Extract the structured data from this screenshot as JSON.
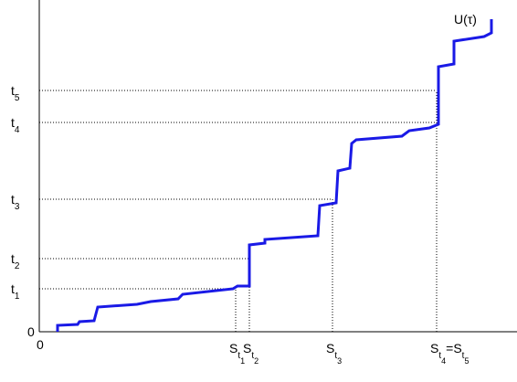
{
  "chart_data": {
    "type": "line",
    "annotation": "U(τ)",
    "xlim": [
      0,
      523
    ],
    "ylim": [
      0,
      363
    ],
    "xticks": [
      0,
      {
        "value": 215,
        "label": [
          {
            "text": "S",
            "level": 0
          },
          {
            "text": "t",
            "level": 1
          },
          {
            "text": "1",
            "level": 2
          }
        ]
      },
      {
        "value": 230,
        "label": [
          {
            "text": "S",
            "level": 0
          },
          {
            "text": "t",
            "level": 1
          },
          {
            "text": "2",
            "level": 2
          }
        ]
      },
      {
        "value": 321,
        "label": [
          {
            "text": "S",
            "level": 0
          },
          {
            "text": "t",
            "level": 1
          },
          {
            "text": "3",
            "level": 2
          }
        ]
      },
      {
        "value": 435,
        "label": [
          {
            "text": "S",
            "level": 0
          },
          {
            "text": "t",
            "level": 1
          },
          {
            "text": "4",
            "level": 2
          },
          {
            "text": "=S",
            "level": 0
          },
          {
            "text": "t",
            "level": 1
          },
          {
            "text": "5",
            "level": 2
          }
        ]
      }
    ],
    "yticks": [
      0,
      {
        "value": 47,
        "label": [
          {
            "text": "t",
            "level": 0
          },
          {
            "text": "1",
            "level": 1
          }
        ]
      },
      {
        "value": 80,
        "label": [
          {
            "text": "t",
            "level": 0
          },
          {
            "text": "2",
            "level": 1
          }
        ]
      },
      {
        "value": 145,
        "label": [
          {
            "text": "t",
            "level": 0
          },
          {
            "text": "3",
            "level": 1
          }
        ]
      },
      {
        "value": 229,
        "label": [
          {
            "text": "t",
            "level": 0
          },
          {
            "text": "4",
            "level": 1
          }
        ]
      },
      {
        "value": 264,
        "label": [
          {
            "text": "t",
            "level": 0
          },
          {
            "text": "5",
            "level": 1
          }
        ]
      }
    ],
    "series": [
      {
        "color": "#1a1ae6",
        "x": [
          20,
          20,
          42,
          44,
          60,
          64,
          107,
          122,
          152,
          157,
          212,
          217,
          230,
          230,
          247,
          247,
          305,
          307,
          325,
          327,
          340,
          342,
          347,
          397,
          405,
          427,
          437,
          437,
          454,
          454,
          487,
          495,
          495
        ],
        "values": [
          0,
          7,
          8,
          11,
          12,
          27,
          30,
          33,
          36,
          41,
          47,
          50,
          50,
          95,
          97,
          101,
          105,
          138,
          141,
          176,
          179,
          206,
          210,
          214,
          220,
          223,
          227,
          290,
          293,
          318,
          323,
          327,
          342
        ]
      }
    ]
  }
}
